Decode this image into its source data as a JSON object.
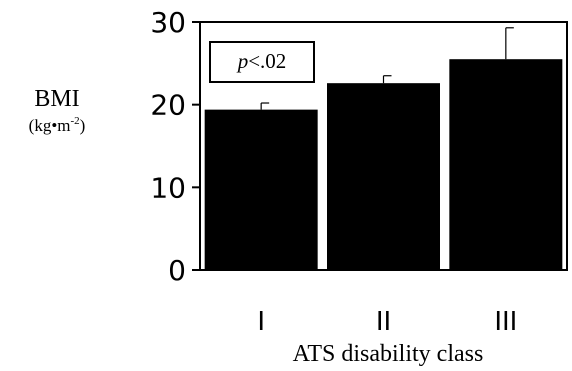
{
  "chart_data": {
    "type": "bar",
    "title": "",
    "xlabel": "ATS disability class",
    "ylabel": "BMI",
    "ylabel_unit_base": "(kg•m",
    "ylabel_unit_exp": "-2",
    "ylabel_unit_close": ")",
    "categories": [
      "I",
      "II",
      "III"
    ],
    "values": [
      19.4,
      22.6,
      25.5
    ],
    "errors": [
      0.8,
      0.9,
      3.8
    ],
    "ylim": [
      0,
      30
    ],
    "yticks": [
      "0",
      "10",
      "20",
      "30"
    ],
    "grid": false,
    "annotation": "p<.02",
    "annotation_italic": "p",
    "annotation_rest": "<.02",
    "bar_color": "#000000"
  }
}
